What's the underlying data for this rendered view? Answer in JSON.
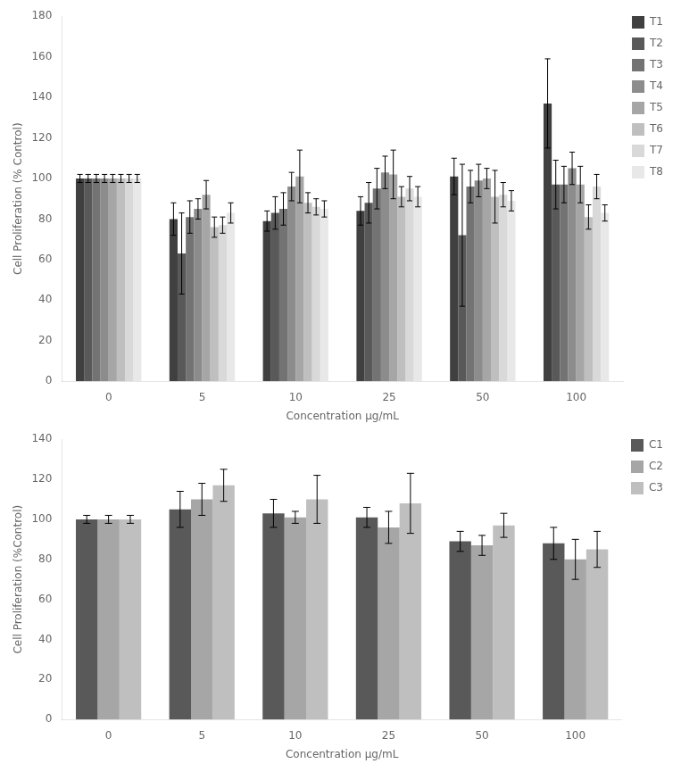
{
  "chart_data": [
    {
      "type": "bar",
      "categories": [
        "0",
        "5",
        "10",
        "25",
        "50",
        "100"
      ],
      "series": [
        {
          "name": "T1",
          "color": "#404040",
          "values": [
            100,
            80,
            79,
            84,
            101,
            137
          ],
          "errors": [
            2,
            8,
            5,
            7,
            9,
            22
          ]
        },
        {
          "name": "T2",
          "color": "#595959",
          "values": [
            100,
            63,
            83,
            88,
            72,
            97
          ],
          "errors": [
            2,
            20,
            8,
            10,
            35,
            12
          ]
        },
        {
          "name": "T3",
          "color": "#737373",
          "values": [
            100,
            81,
            85,
            95,
            96,
            97
          ],
          "errors": [
            2,
            8,
            8,
            10,
            8,
            9
          ]
        },
        {
          "name": "T4",
          "color": "#8c8c8c",
          "values": [
            100,
            85,
            96,
            103,
            99,
            105
          ],
          "errors": [
            2,
            5,
            7,
            8,
            8,
            8
          ]
        },
        {
          "name": "T5",
          "color": "#a6a6a6",
          "values": [
            100,
            92,
            101,
            102,
            100,
            97
          ],
          "errors": [
            2,
            7,
            13,
            12,
            5,
            9
          ]
        },
        {
          "name": "T6",
          "color": "#bfbfbf",
          "values": [
            100,
            76,
            88,
            91,
            91,
            81
          ],
          "errors": [
            2,
            5,
            5,
            5,
            13,
            6
          ]
        },
        {
          "name": "T7",
          "color": "#d9d9d9",
          "values": [
            100,
            77,
            86,
            95,
            92,
            96
          ],
          "errors": [
            2,
            4,
            4,
            6,
            6,
            6
          ]
        },
        {
          "name": "T8",
          "color": "#e8e8e8",
          "values": [
            100,
            83,
            85,
            91,
            89,
            83
          ],
          "errors": [
            2,
            5,
            4,
            5,
            5,
            4
          ]
        }
      ],
      "xlabel": "Concentration μg/mL",
      "ylabel": "Cell Proliferation (% Control)",
      "ylim": [
        0,
        180
      ],
      "yticks": [
        0,
        20,
        40,
        60,
        80,
        100,
        120,
        140,
        160,
        180
      ],
      "grid": false,
      "legend": "right"
    },
    {
      "type": "bar",
      "categories": [
        "0",
        "5",
        "10",
        "25",
        "50",
        "100"
      ],
      "series": [
        {
          "name": "C1",
          "color": "#595959",
          "values": [
            100,
            105,
            103,
            101,
            89,
            88
          ],
          "errors": [
            2,
            9,
            7,
            5,
            5,
            8
          ]
        },
        {
          "name": "C2",
          "color": "#a6a6a6",
          "values": [
            100,
            110,
            101,
            96,
            87,
            80
          ],
          "errors": [
            2,
            8,
            3,
            8,
            5,
            10
          ]
        },
        {
          "name": "C3",
          "color": "#bfbfbf",
          "values": [
            100,
            117,
            110,
            108,
            97,
            85
          ],
          "errors": [
            2,
            8,
            12,
            15,
            6,
            9
          ]
        }
      ],
      "xlabel": "Concentration μg/mL",
      "ylabel": "Cell Proliferation (%Control)",
      "ylim": [
        0,
        140
      ],
      "yticks": [
        0,
        20,
        40,
        60,
        80,
        100,
        120,
        140
      ],
      "grid": false,
      "legend": "right"
    }
  ]
}
